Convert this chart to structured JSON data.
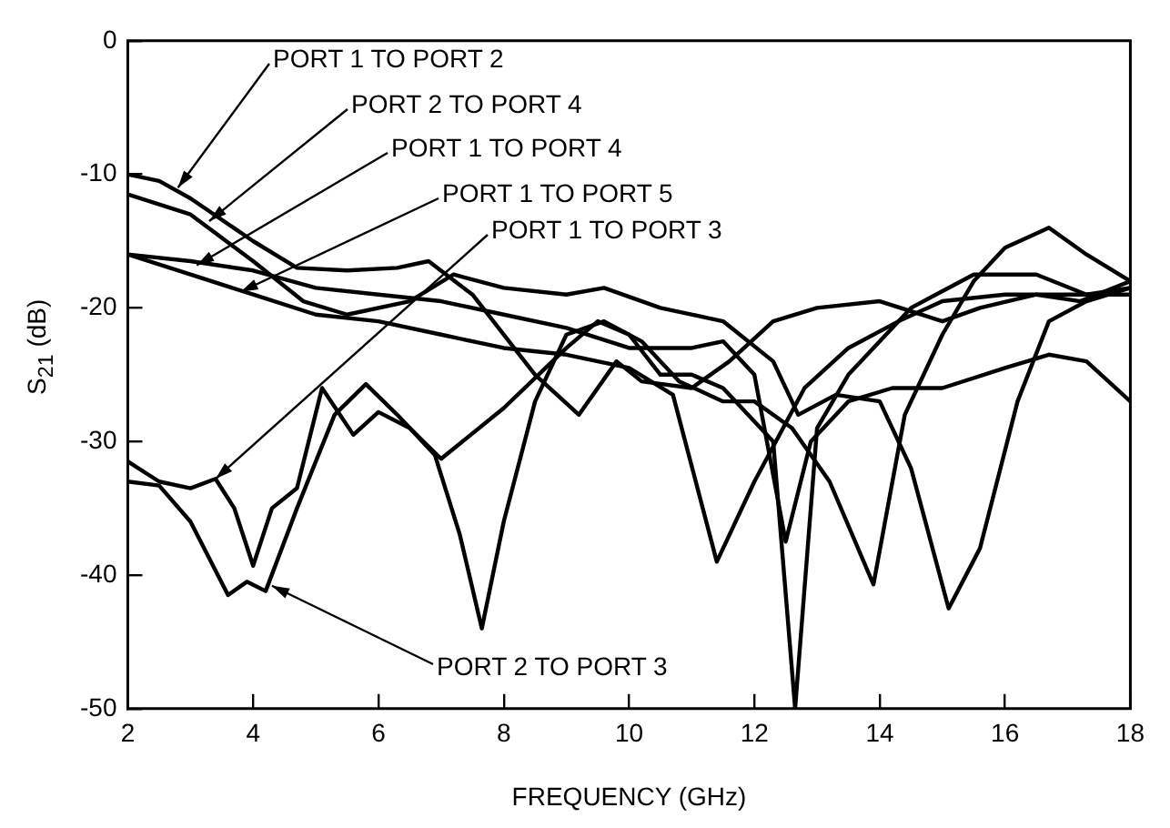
{
  "chart_data": {
    "type": "line",
    "xlabel": "FREQUENCY (GHz)",
    "ylabel": "S$_{21}$ (dB)",
    "xlim": [
      2,
      18
    ],
    "xticks": [
      2,
      4,
      6,
      8,
      10,
      12,
      14,
      16,
      18
    ],
    "ylim": [
      -50,
      0
    ],
    "yticks": [
      -50,
      -40,
      -30,
      -20,
      -10,
      0
    ],
    "grid": false,
    "legend": false,
    "marker": "none",
    "line_style": "solid",
    "annotations": [
      {
        "text": "PORT 1 TO PORT 2",
        "x": 2.8,
        "y": -11
      },
      {
        "text": "PORT 2 TO PORT 4",
        "x": 3.3,
        "y": -13.5
      },
      {
        "text": "PORT 1 TO PORT 4",
        "x": 3.1,
        "y": -16.8
      },
      {
        "text": "PORT 1 TO PORT 5",
        "x": 3.8,
        "y": -18.8
      },
      {
        "text": "PORT 1 TO PORT 3",
        "x": 3.4,
        "y": -32.8
      },
      {
        "text": "PORT 2 TO PORT 3",
        "x": 4.3,
        "y": -40.8
      }
    ],
    "series": [
      {
        "color": "#000000",
        "x": [
          2,
          2.5,
          3,
          4,
          4.7,
          5.5,
          6.3,
          6.8,
          7.5,
          8.5,
          9.2,
          9.8,
          10.2,
          11,
          11.6,
          12.3,
          13,
          14,
          15,
          15.6,
          16.5,
          17.2,
          18
        ],
        "values": [
          -10,
          -10.5,
          -11.8,
          -15,
          -17,
          -17.2,
          -17,
          -16.5,
          -19,
          -25,
          -28,
          -24,
          -25.5,
          -26,
          -24,
          -21,
          -20,
          -19.5,
          -21,
          -20,
          -19,
          -19.5,
          -18
        ]
      },
      {
        "color": "#000000",
        "x": [
          2,
          3,
          4,
          4.8,
          5.5,
          6.5,
          7.2,
          8,
          9,
          9.6,
          10.5,
          11.5,
          12.3,
          12.7,
          13.3,
          14,
          14.5,
          15.1,
          15.6,
          16.2,
          16.7,
          17.3,
          18
        ],
        "values": [
          -11.5,
          -13,
          -16.5,
          -19.5,
          -20.5,
          -19.5,
          -17.5,
          -18.5,
          -19,
          -18.5,
          -20,
          -21,
          -24,
          -28,
          -26.5,
          -27,
          -32,
          -42.5,
          -38,
          -27,
          -21,
          -19.5,
          -18.5
        ]
      },
      {
        "color": "#000000",
        "x": [
          2,
          3,
          4,
          5,
          6,
          7,
          8,
          9,
          10,
          11,
          11.5,
          12,
          12.5,
          12.9,
          13.5,
          14.2,
          15,
          16,
          16.7,
          17.3,
          18
        ],
        "values": [
          -16,
          -16.5,
          -17.2,
          -18.5,
          -19,
          -19.5,
          -20.5,
          -21.5,
          -23,
          -23,
          -22.5,
          -25,
          -37.5,
          -30,
          -27,
          -26,
          -26,
          -24.5,
          -23.5,
          -24,
          -27
        ]
      },
      {
        "color": "#000000",
        "x": [
          2,
          3,
          4,
          5,
          6,
          7,
          8,
          9,
          10,
          10.7,
          11.4,
          12,
          12.8,
          13.5,
          14.3,
          15,
          16,
          17,
          18
        ],
        "values": [
          -16,
          -17.5,
          -19,
          -20.5,
          -21,
          -22,
          -23,
          -23.5,
          -24.5,
          -26.5,
          -39,
          -33,
          -26,
          -23,
          -21,
          -19.5,
          -19,
          -19,
          -19
        ]
      },
      {
        "color": "#000000",
        "x": [
          2,
          2.5,
          3,
          3.4,
          3.7,
          4,
          4.3,
          4.7,
          5.1,
          5.6,
          6,
          6.5,
          7,
          8,
          9,
          9.5,
          10,
          10.5,
          11,
          11.5,
          12.3,
          12.65,
          13,
          13.5,
          14.5,
          15.5,
          16.5,
          17.3,
          18
        ],
        "values": [
          -31.5,
          -33,
          -33.5,
          -32.8,
          -35,
          -39.3,
          -35,
          -33.5,
          -26,
          -29.5,
          -27.8,
          -29,
          -31.3,
          -27.5,
          -23,
          -21,
          -22,
          -25,
          -25,
          -26,
          -30,
          -50,
          -29,
          -25,
          -20,
          -17.5,
          -17.5,
          -19,
          -18.5
        ]
      },
      {
        "color": "#000000",
        "x": [
          2,
          2.5,
          3,
          3.6,
          3.9,
          4.2,
          4.7,
          5.3,
          5.8,
          6.3,
          6.9,
          7.3,
          7.65,
          8,
          8.5,
          9,
          9.6,
          10.2,
          10.8,
          11.5,
          12,
          12.6,
          13.2,
          13.9,
          14.4,
          15,
          15.5,
          16,
          16.7,
          17.3,
          18
        ],
        "values": [
          -33,
          -33.3,
          -36,
          -41.5,
          -40.5,
          -41.2,
          -35,
          -28,
          -25.7,
          -28,
          -31,
          -37,
          -44,
          -36,
          -27,
          -22,
          -21,
          -22.5,
          -25.5,
          -27,
          -27,
          -29,
          -33,
          -40.7,
          -28,
          -22,
          -18,
          -15.5,
          -14,
          -16,
          -18
        ]
      }
    ]
  }
}
